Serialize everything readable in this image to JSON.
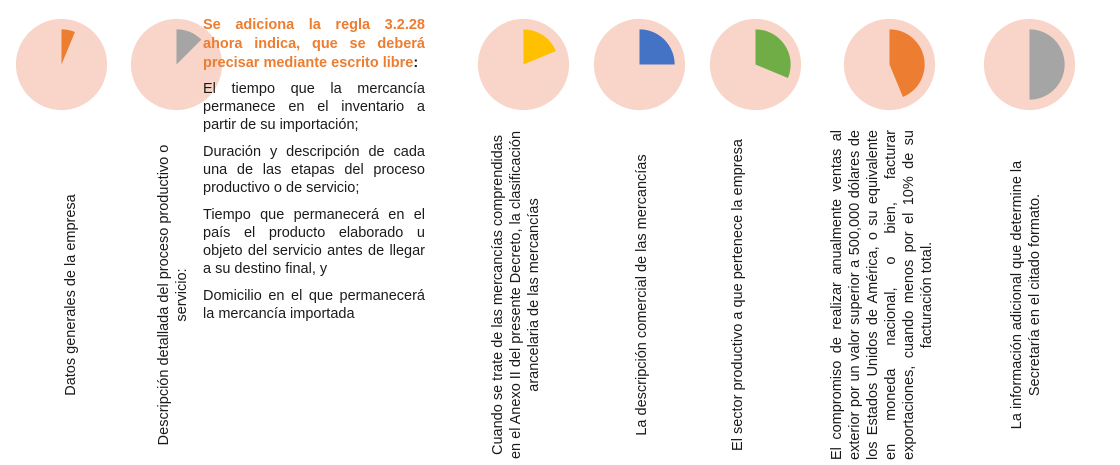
{
  "heading": "Se adiciona la regla 3.2.28 ahora indica, que se deberá precisar mediante escrito libre",
  "heading_suffix": ":",
  "details": [
    "El tiempo que la mercancía permanece en el inventario a partir de su importación;",
    "Duración y descripción de cada una de las etapas del proceso productivo o de servicio;",
    "Tiempo que permanecerá en el país el producto elaborado u objeto del servicio antes de llegar a su destino final, y",
    "Domicilio en el que permanecerá la mercancía importada"
  ],
  "colors": {
    "disc": "#f8d5c8",
    "orange": "#ed7d31",
    "gray": "#a5a5a5",
    "yellow": "#ffc000",
    "blue": "#4472c4",
    "green": "#70ad47",
    "heading": "#ed7d31"
  },
  "steps": [
    {
      "label": "Datos generales de la empresa",
      "fraction": 0.0625,
      "color": "orange"
    },
    {
      "label": "Descripción detallada del proceso productivo o servicio:",
      "fraction": 0.125,
      "color": "gray"
    },
    {
      "label": "Cuando se trate de las mercancías comprendidas en el Anexo II del presente Decreto, la clasificación arancelaria de las mercancías",
      "fraction": 0.1875,
      "color": "yellow"
    },
    {
      "label": "La descripción comercial de las mercancías",
      "fraction": 0.25,
      "color": "blue"
    },
    {
      "label": "El sector productivo a que pertenece la empresa",
      "fraction": 0.3125,
      "color": "green"
    },
    {
      "label": "El compromiso de realizar anualmente ventas al exterior por un valor superior a 500,000 dólares de los Estados Unidos de América, o su equivalente en moneda nacional, o bien, facturar exportaciones, cuando menos por el 10% de su facturación total.",
      "fraction": 0.4375,
      "color": "orange"
    },
    {
      "label": "La información adicional que determine la Secretaría en el citado formato.",
      "fraction": 0.5,
      "color": "gray"
    }
  ]
}
